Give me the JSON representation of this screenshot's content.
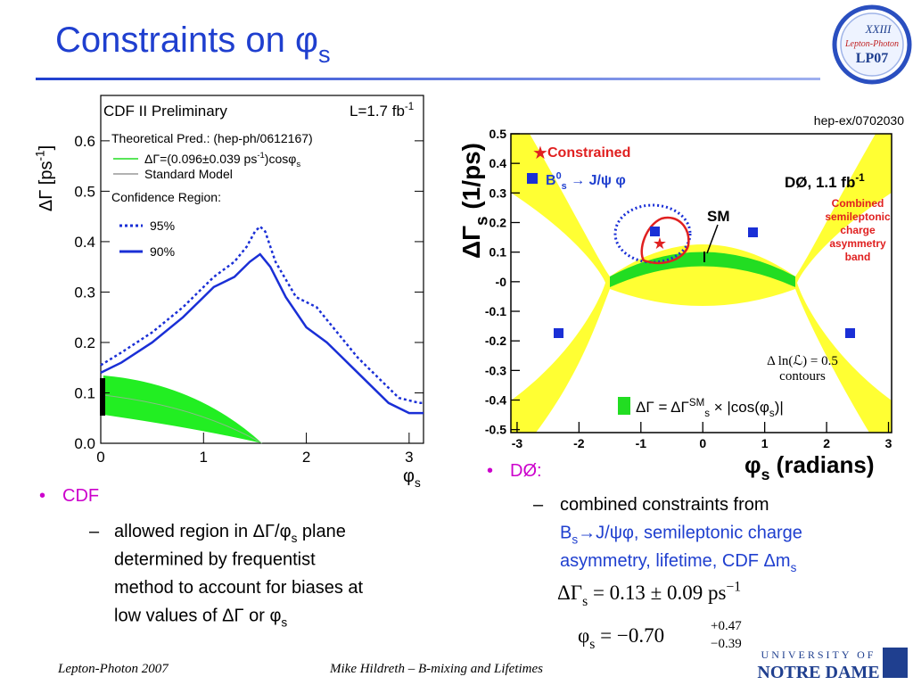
{
  "slide": {
    "title": [
      "Constraints on φ",
      {
        "text": "s",
        "style": "sub"
      }
    ],
    "logo": {
      "numeral": "XXIII",
      "name": "Lepton-Photon",
      "code": "LP07"
    },
    "bullets_cdf": {
      "head": "CDF",
      "lines": [
        [
          "allowed region in ΔΓ/φ",
          {
            "text": "s",
            "style": "sub"
          },
          " plane"
        ],
        [
          "determined by frequentist"
        ],
        [
          "method to account for biases at"
        ],
        [
          "low values of ΔΓ or φ",
          {
            "text": "s",
            "style": "sub"
          }
        ]
      ]
    },
    "bullets_d0": {
      "head": "DØ:",
      "lines": [
        [
          "combined constraints from"
        ],
        [
          "B",
          {
            "text": "s",
            "style": "sub"
          },
          "→J/ψφ, semileptonic charge"
        ],
        [
          "asymmetry, lifetime, CDF Δm",
          {
            "text": "s",
            "style": "sub"
          }
        ]
      ],
      "equations": [
        {
          "main": [
            "ΔΓ",
            {
              "text": "s",
              "style": "sub"
            },
            "  =  0.13 ± 0.09 ps",
            {
              "text": "−1",
              "style": "sup"
            }
          ]
        },
        {
          "main": [
            "φ",
            {
              "text": "s",
              "style": "sub"
            },
            "  =  −0.70"
          ],
          "upper": "+0.47",
          "lower": "−0.39"
        }
      ]
    },
    "footer": {
      "left": "Lepton-Photon 2007",
      "center": "Mike Hildreth – B-mixing and Lifetimes",
      "university": "UNIVERSITY OF",
      "school": "NOTRE DAME"
    }
  },
  "chart_data": [
    {
      "type": "line",
      "title": "CDF II Preliminary",
      "luminosity": [
        "L=1.7 fb",
        {
          "text": "-1",
          "style": "sup"
        }
      ],
      "ylabel": [
        "ΔΓ [ps",
        {
          "text": "-1",
          "style": "sup"
        },
        "]"
      ],
      "xlabel": [
        "φ",
        {
          "text": "s",
          "style": "sub"
        }
      ],
      "legend_title": "Theoretical Pred.: (hep-ph/0612167)",
      "theory": [
        {
          "name": [
            "ΔΓ=(0.096±0.039 ps",
            {
              "text": "-1",
              "style": "sup"
            },
            ")cosφ",
            {
              "text": "s",
              "style": "sub"
            }
          ],
          "color": "#22dd22"
        },
        {
          "name": [
            "Standard Model"
          ],
          "color": "#999999"
        }
      ],
      "confidence_title": "Confidence Region:",
      "xlim": [
        0,
        3.14
      ],
      "ylim": [
        0,
        0.69
      ],
      "xticks": [
        0,
        1,
        2,
        3
      ],
      "yticks": [
        {
          "value": 0,
          "label": "0.0"
        },
        0.1,
        0.2,
        0.3,
        0.4,
        0.5,
        0.6
      ],
      "series": [
        {
          "name": "95%",
          "color": "#1a2fd6",
          "dash": "dotted",
          "x": [
            0,
            0.2,
            0.5,
            0.8,
            1.0,
            1.1,
            1.3,
            1.42,
            1.5,
            1.55,
            1.6,
            1.7,
            1.9,
            2.1,
            2.3,
            2.5,
            2.7,
            2.9,
            3.1,
            3.14
          ],
          "values": [
            0.155,
            0.18,
            0.22,
            0.27,
            0.31,
            0.33,
            0.36,
            0.39,
            0.42,
            0.43,
            0.42,
            0.36,
            0.29,
            0.27,
            0.22,
            0.17,
            0.13,
            0.09,
            0.08,
            0.08
          ]
        },
        {
          "name": "90%",
          "color": "#1a2fd6",
          "dash": "solid",
          "x": [
            0,
            0.2,
            0.5,
            0.8,
            1.0,
            1.1,
            1.3,
            1.45,
            1.55,
            1.65,
            1.8,
            2.0,
            2.2,
            2.4,
            2.6,
            2.8,
            3.0,
            3.14
          ],
          "values": [
            0.14,
            0.16,
            0.2,
            0.25,
            0.29,
            0.31,
            0.33,
            0.36,
            0.375,
            0.35,
            0.29,
            0.23,
            0.2,
            0.16,
            0.12,
            0.08,
            0.06,
            0.06
          ]
        }
      ]
    },
    {
      "type": "contour",
      "reference": "hep-ex/0702030",
      "experiment": [
        "DØ, 1.1 fb",
        {
          "text": "-1",
          "style": "sup"
        }
      ],
      "ylabel": [
        "ΔΓ",
        {
          "text": "s",
          "style": "sub"
        },
        " (1/ps)"
      ],
      "xlabel": [
        "φ",
        {
          "text": "s",
          "style": "sub"
        },
        " (radians)"
      ],
      "legend": {
        "constrained": "Constrained",
        "channel": [
          "B",
          {
            "text": "0",
            "style": "sup"
          },
          {
            "text": "s",
            "style": "sub"
          },
          " → J/ψ φ"
        ],
        "band": [
          "ΔΓ = ΔΓ",
          {
            "text": "SM",
            "style": "sup"
          },
          {
            "text": "s",
            "style": "sub"
          },
          " × |cos(φ",
          {
            "text": "s",
            "style": "sub"
          },
          ")|"
        ]
      },
      "sm_label": "SM",
      "band_label": [
        "Combined",
        "semileptonic",
        "charge",
        "asymmetry",
        "band"
      ],
      "contour_label": [
        "Δ ln(ℒ) = 0.5",
        "contours"
      ],
      "xlim": [
        -3.1,
        3.05
      ],
      "ylim": [
        -0.51,
        0.5
      ],
      "xticks": [
        -3,
        -2,
        -1,
        0,
        1,
        2,
        3
      ],
      "yticks": [
        0.5,
        0.4,
        0.3,
        0.2,
        0.1,
        {
          "value": 0,
          "label": "-0"
        },
        -0.1,
        -0.2,
        -0.3,
        -0.4,
        -0.5
      ]
    }
  ]
}
